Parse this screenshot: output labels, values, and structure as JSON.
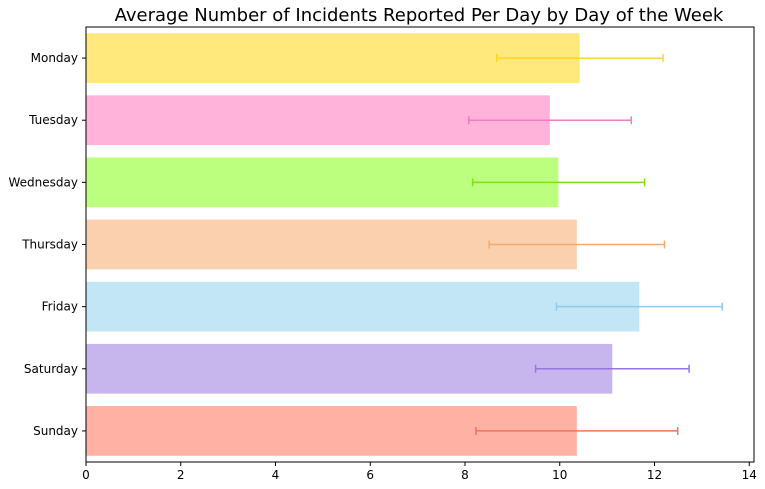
{
  "chart_data": {
    "type": "bar",
    "orientation": "horizontal",
    "title": "Average Number of Incidents Reported Per Day by Day of the Week",
    "xlabel": "",
    "ylabel": "",
    "xlim": [
      0,
      14.1
    ],
    "x_ticks": [
      "0",
      "2",
      "4",
      "6",
      "8",
      "10",
      "12",
      "14"
    ],
    "grid": false,
    "categories": [
      "Monday",
      "Tuesday",
      "Wednesday",
      "Thursday",
      "Friday",
      "Saturday",
      "Sunday"
    ],
    "values": [
      10.42,
      9.79,
      9.97,
      10.36,
      11.68,
      11.11,
      10.36
    ],
    "error_low": [
      8.67,
      8.08,
      8.16,
      8.51,
      9.93,
      9.49,
      8.23
    ],
    "error_high": [
      12.18,
      11.51,
      11.79,
      12.21,
      13.43,
      12.73,
      12.49
    ],
    "bar_colors": [
      "#FFE87C",
      "#FFB3DA",
      "#BCFF7E",
      "#FAD0AE",
      "#C2E6F5",
      "#C7B6EE",
      "#FFB1A3"
    ],
    "error_colors": [
      "#FFD526",
      "#EF7EC3",
      "#7DE018",
      "#F3AA6E",
      "#8ECBED",
      "#9774E0",
      "#F4725D"
    ]
  }
}
